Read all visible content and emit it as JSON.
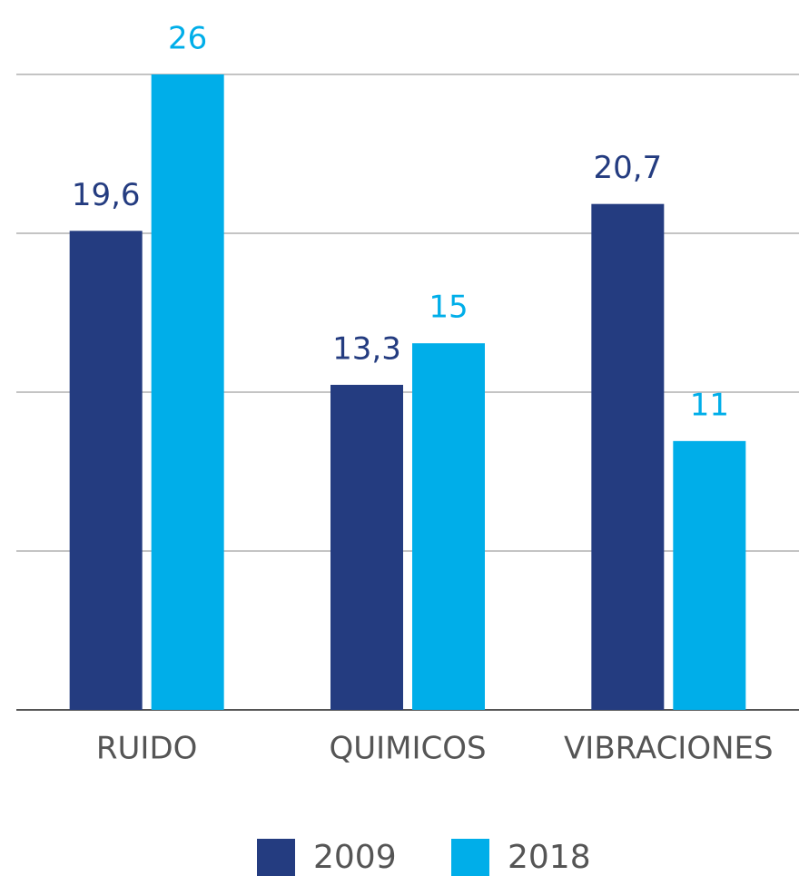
{
  "chart_data": {
    "type": "bar",
    "categories": [
      "RUIDO",
      "QUIMICOS",
      "VIBRACIONES"
    ],
    "series": [
      {
        "name": "2009",
        "color": "#243c80",
        "values": [
          19.6,
          13.3,
          20.7
        ],
        "value_labels": [
          "19,6",
          "13,3",
          "20,7"
        ]
      },
      {
        "name": "2018",
        "color": "#00aee9",
        "values": [
          26,
          15,
          11
        ],
        "value_labels": [
          "26",
          "15",
          "11"
        ]
      }
    ],
    "ylim": [
      0,
      26
    ],
    "yticks": [
      0,
      6.5,
      13,
      19.5,
      26
    ],
    "grid": true,
    "legend": "bottom"
  }
}
